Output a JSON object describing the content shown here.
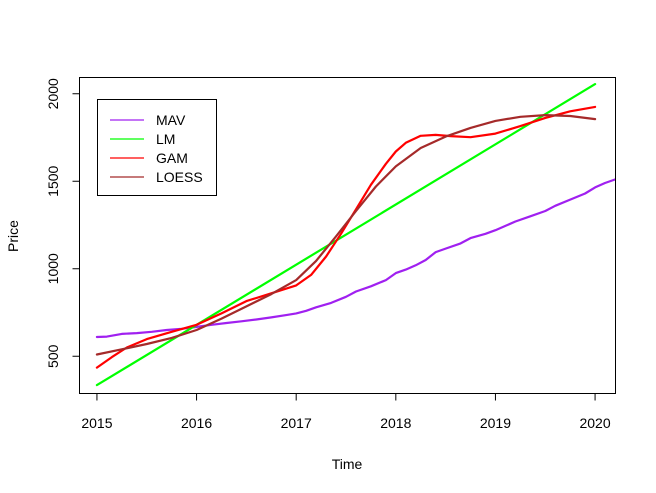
{
  "chart_data": {
    "type": "line",
    "title": "",
    "xlabel": "Time",
    "ylabel": "Price",
    "xlim": [
      2014.83,
      2020.2
    ],
    "ylim": [
      290,
      2090
    ],
    "xticks": [
      2015,
      2016,
      2017,
      2018,
      2019,
      2020
    ],
    "yticks": [
      500,
      1000,
      1500,
      2000
    ],
    "grid": false,
    "legend_position": "top-left",
    "series": [
      {
        "name": "MAV",
        "color": "#a020f0",
        "x": [
          2015.0,
          2015.1,
          2015.25,
          2015.4,
          2015.55,
          2015.7,
          2015.85,
          2016.0,
          2016.15,
          2016.3,
          2016.45,
          2016.6,
          2016.75,
          2016.9,
          2017.0,
          2017.1,
          2017.2,
          2017.35,
          2017.5,
          2017.6,
          2017.75,
          2017.9,
          2018.0,
          2018.1,
          2018.2,
          2018.3,
          2018.4,
          2018.5,
          2018.65,
          2018.75,
          2018.9,
          2019.0,
          2019.1,
          2019.2,
          2019.35,
          2019.5,
          2019.6,
          2019.75,
          2019.9,
          2020.0,
          2020.1,
          2020.2
        ],
        "y": [
          610,
          612,
          628,
          632,
          640,
          650,
          657,
          668,
          680,
          690,
          700,
          710,
          722,
          735,
          745,
          760,
          780,
          805,
          840,
          870,
          900,
          935,
          975,
          995,
          1020,
          1050,
          1095,
          1115,
          1145,
          1175,
          1200,
          1220,
          1245,
          1270,
          1300,
          1330,
          1360,
          1395,
          1430,
          1465,
          1490,
          1510
        ]
      },
      {
        "name": "LM",
        "color": "#00ff00",
        "x": [
          2015.0,
          2020.0
        ],
        "y": [
          335,
          2055
        ]
      },
      {
        "name": "GAM",
        "color": "#ff0000",
        "x": [
          2015.0,
          2015.15,
          2015.3,
          2015.5,
          2015.75,
          2016.0,
          2016.25,
          2016.5,
          2016.75,
          2017.0,
          2017.15,
          2017.3,
          2017.45,
          2017.6,
          2017.75,
          2017.9,
          2018.0,
          2018.1,
          2018.25,
          2018.4,
          2018.55,
          2018.75,
          2019.0,
          2019.25,
          2019.5,
          2019.75,
          2020.0
        ],
        "y": [
          435,
          495,
          550,
          598,
          640,
          680,
          745,
          815,
          860,
          905,
          965,
          1070,
          1200,
          1340,
          1480,
          1600,
          1670,
          1720,
          1760,
          1765,
          1758,
          1752,
          1772,
          1815,
          1862,
          1900,
          1925
        ]
      },
      {
        "name": "LOESS",
        "color": "#a52a2a",
        "x": [
          2015.0,
          2015.25,
          2015.5,
          2015.75,
          2016.0,
          2016.25,
          2016.5,
          2016.75,
          2017.0,
          2017.2,
          2017.4,
          2017.6,
          2017.8,
          2018.0,
          2018.25,
          2018.5,
          2018.75,
          2019.0,
          2019.25,
          2019.5,
          2019.75,
          2020.0
        ],
        "y": [
          510,
          540,
          570,
          605,
          650,
          715,
          785,
          855,
          935,
          1045,
          1185,
          1330,
          1470,
          1585,
          1690,
          1755,
          1805,
          1845,
          1868,
          1878,
          1873,
          1855
        ]
      }
    ]
  }
}
